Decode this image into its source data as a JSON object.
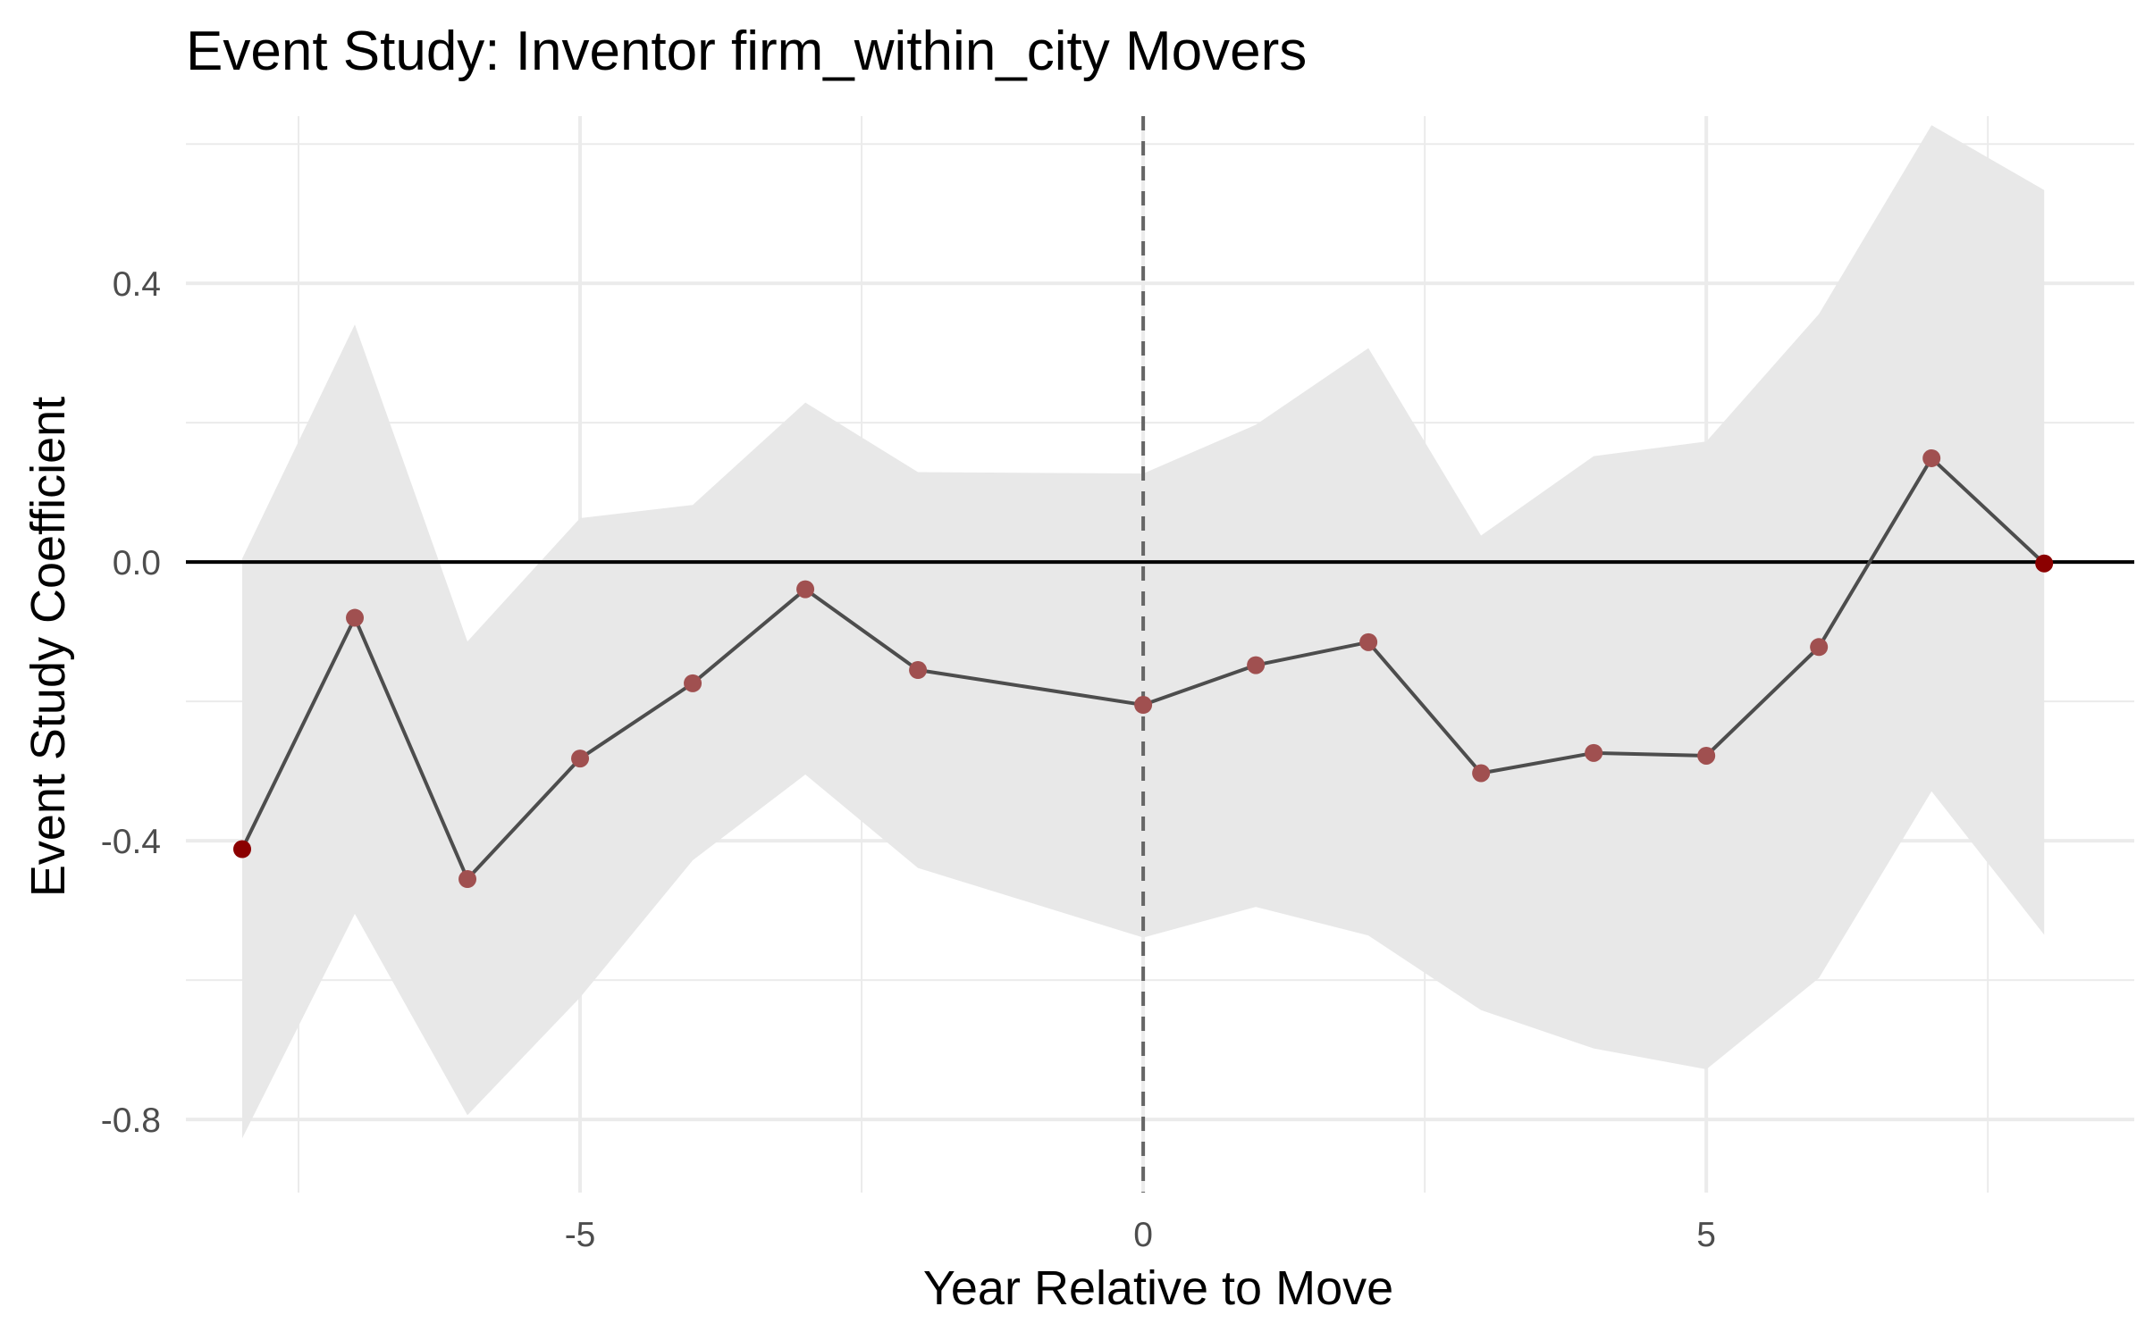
{
  "chart_data": {
    "type": "line",
    "title": "Event Study: Inventor firm_within_city Movers",
    "xlabel": "Year Relative to Move",
    "ylabel": "Event Study Coefficient",
    "xlim": [
      -8.5,
      8.8
    ],
    "ylim": [
      -0.905,
      0.64
    ],
    "x_ticks": [
      -5,
      0,
      5
    ],
    "x_tick_labels": [
      "-5",
      "0",
      "5"
    ],
    "y_ticks": [
      -0.8,
      -0.4,
      0.0,
      0.4
    ],
    "y_tick_labels": [
      "-0.8",
      "-0.4",
      "0.0",
      "0.4"
    ],
    "grid": true,
    "reference_lines": {
      "horizontal_y": 0.0,
      "vertical_x": 0
    },
    "x": [
      -8,
      -7,
      -6,
      -5,
      -4,
      -3,
      -2,
      0,
      1,
      2,
      3,
      4,
      5,
      6,
      7,
      8
    ],
    "series": [
      {
        "values": [
          -0.412,
          -0.08,
          -0.455,
          -0.282,
          -0.174,
          -0.039,
          -0.155,
          -0.205,
          -0.148,
          -0.115,
          -0.303,
          -0.274,
          -0.278,
          -0.122,
          0.149,
          -0.002
        ],
        "ci_lower": [
          -0.827,
          -0.505,
          -0.794,
          -0.625,
          -0.428,
          -0.305,
          -0.439,
          -0.539,
          -0.495,
          -0.536,
          -0.643,
          -0.698,
          -0.728,
          -0.597,
          -0.329,
          -0.535
        ],
        "ci_upper": [
          0.005,
          0.341,
          -0.114,
          0.063,
          0.082,
          0.229,
          0.129,
          0.127,
          0.197,
          0.307,
          0.038,
          0.152,
          0.173,
          0.356,
          0.627,
          0.534
        ]
      }
    ],
    "colors": {
      "line": "#4d4d4d",
      "point": "#a05050",
      "endpoint": "#8b0000",
      "ribbon": "#e8e8e8",
      "zero_line": "#000000",
      "event_line": "#666666"
    }
  }
}
